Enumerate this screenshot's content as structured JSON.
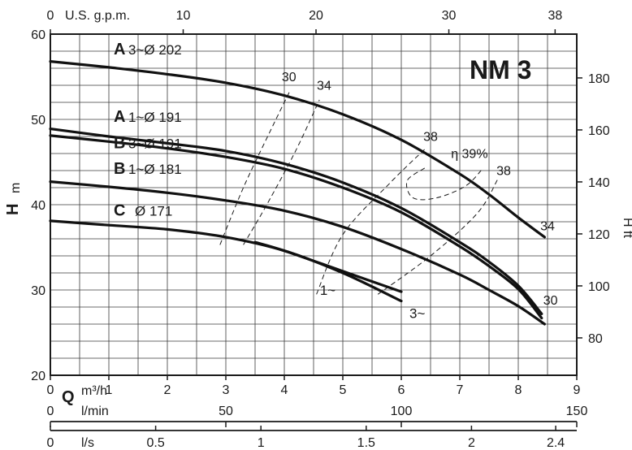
{
  "model_label": "NM 3",
  "axis": {
    "h_label": "H",
    "h_unit": "m",
    "hft_label": "H ft",
    "q_label": "Q",
    "q_unit": "m³/h",
    "lmin_unit": "l/min",
    "ls_unit": "l/s",
    "usgpm_unit": "U.S. g.p.m."
  },
  "chart_data": {
    "type": "line",
    "x_unit": "m³/h",
    "y_unit": "m",
    "xlim": [
      0,
      9
    ],
    "ylim": [
      20,
      60
    ],
    "grid": true,
    "x_ticks": [
      "0",
      "1",
      "2",
      "3",
      "4",
      "5",
      "6",
      "7",
      "8",
      "9"
    ],
    "y_ticks": [
      "20",
      "30",
      "40",
      "50",
      "60"
    ],
    "hft_ticks": [
      {
        "label": "80",
        "ft": 80
      },
      {
        "label": "100",
        "ft": 100
      },
      {
        "label": "120",
        "ft": 120
      },
      {
        "label": "140",
        "ft": 140
      },
      {
        "label": "160",
        "ft": 160
      },
      {
        "label": "180",
        "ft": 180
      }
    ],
    "usgpm_ticks": [
      {
        "label": "0",
        "gpm": 0
      },
      {
        "label": "10",
        "gpm": 10
      },
      {
        "label": "20",
        "gpm": 20
      },
      {
        "label": "30",
        "gpm": 30
      },
      {
        "label": "38",
        "gpm": 38
      }
    ],
    "lmin_ticks": [
      {
        "label": "0",
        "lmin": 0
      },
      {
        "label": "50",
        "lmin": 50
      },
      {
        "label": "100",
        "lmin": 100
      },
      {
        "label": "150",
        "lmin": 150
      }
    ],
    "ls_ticks": [
      {
        "label": "0",
        "ls": 0
      },
      {
        "label": "0.5",
        "ls": 0.5
      },
      {
        "label": "1",
        "ls": 1
      },
      {
        "label": "1.5",
        "ls": 1.5
      },
      {
        "label": "2",
        "ls": 2
      },
      {
        "label": "2.4",
        "ls": 2.4
      }
    ],
    "series": [
      {
        "name": "A 3~Ø 202",
        "letter": "A",
        "spec": "3~Ø 202",
        "x": [
          0,
          1,
          2,
          3,
          4,
          5,
          6,
          7,
          7.5,
          8,
          8.45
        ],
        "y": [
          56.8,
          56.1,
          55.3,
          54.3,
          52.8,
          50.6,
          47.6,
          43.6,
          41.2,
          38.5,
          36.2
        ]
      },
      {
        "name": "A 1~Ø 191",
        "letter": "A",
        "spec": "1~Ø 191",
        "x": [
          0,
          1,
          2,
          3,
          4,
          5,
          6,
          7,
          7.5,
          8,
          8.4
        ],
        "y": [
          48.9,
          48.0,
          47.2,
          46.3,
          44.8,
          42.6,
          39.6,
          35.6,
          33.3,
          30.5,
          27.2
        ]
      },
      {
        "name": "B 3~Ø 191",
        "letter": "B",
        "spec": "3~Ø 191",
        "x": [
          0,
          1,
          2,
          3,
          4,
          5,
          6,
          7,
          7.5,
          8,
          8.4
        ],
        "y": [
          48.1,
          47.4,
          46.6,
          45.6,
          44.2,
          42.0,
          39.1,
          35.1,
          32.8,
          30.1,
          26.7
        ]
      },
      {
        "name": "B 1~Ø 181",
        "letter": "B",
        "spec": "1~Ø 181",
        "x": [
          0,
          1,
          2,
          3,
          4,
          5,
          6,
          7,
          7.5,
          8,
          8.45
        ],
        "y": [
          42.7,
          42.1,
          41.4,
          40.5,
          39.3,
          37.4,
          34.8,
          31.8,
          30.0,
          28.1,
          26.0
        ]
      },
      {
        "name": "C Ø 171 1~",
        "letter": "C",
        "spec": "Ø 171",
        "x": [
          0,
          1,
          2,
          3,
          4,
          5,
          6
        ],
        "y": [
          38.1,
          37.6,
          37.1,
          36.2,
          34.6,
          32.0,
          28.7
        ]
      },
      {
        "name": "C Ø 171 3~",
        "letter": "",
        "spec": "",
        "x": [
          3.5,
          4,
          5,
          6
        ],
        "y": [
          35.6,
          34.6,
          32.2,
          29.8
        ]
      }
    ],
    "efficiency": [
      {
        "label": "30",
        "x": [
          2.9,
          3.3,
          3.75,
          4.1
        ],
        "y": [
          35.3,
          42.0,
          48.5,
          53.4
        ]
      },
      {
        "label": "34",
        "x": [
          3.3,
          3.7,
          4.2,
          4.6
        ],
        "y": [
          35.3,
          40.0,
          46.4,
          52.3
        ]
      },
      {
        "label": "38",
        "x": [
          4.55,
          5.0,
          5.8,
          6.4
        ],
        "y": [
          29.5,
          36.5,
          42.5,
          46.5
        ]
      },
      {
        "label": "38",
        "x": [
          5.6,
          6.5,
          7.3,
          7.65
        ],
        "y": [
          29.5,
          34.0,
          39.0,
          43.0
        ]
      }
    ],
    "efficiency_peak": {
      "label": "η 39%",
      "x": [
        6.4,
        6.1,
        6.2,
        6.6,
        7.1,
        7.4
      ],
      "y": [
        44.3,
        42.8,
        40.8,
        40.8,
        42.2,
        44.3
      ]
    },
    "efficiency_labels": [
      {
        "label": "30",
        "x": 4.08,
        "y": 54.5
      },
      {
        "label": "34",
        "x": 4.68,
        "y": 53.5
      },
      {
        "label": "38",
        "x": 6.5,
        "y": 47.5
      },
      {
        "label": "38",
        "x": 7.75,
        "y": 43.5
      },
      {
        "label": "34",
        "x": 8.5,
        "y": 37.0
      },
      {
        "label": "30",
        "x": 8.55,
        "y": 28.3
      }
    ],
    "phase_labels": [
      {
        "label": "1~",
        "x": 4.72,
        "y": 30.2
      },
      {
        "label": "3~",
        "x": 6.25,
        "y": 27.5
      }
    ]
  }
}
